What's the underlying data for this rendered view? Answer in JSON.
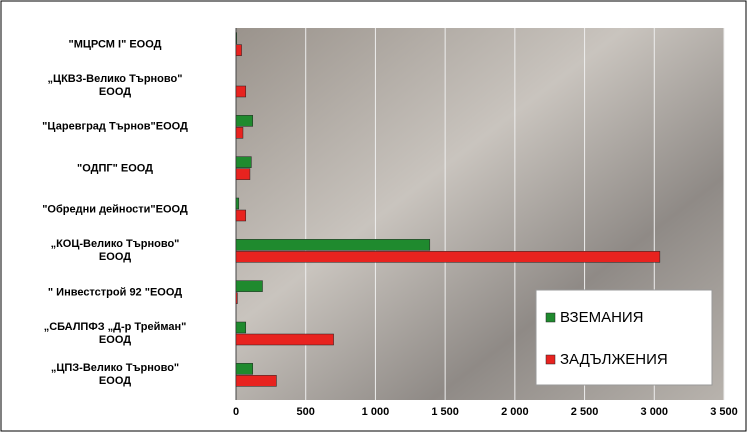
{
  "chart_data": {
    "type": "bar",
    "orientation": "horizontal",
    "categories": [
      "\"МЦРСМ I\" ЕООД",
      "„ЦКВЗ-Велико Търново\"\nЕООД",
      "\"Царевград Търнов\"ЕООД",
      "\"ОДПГ\" ЕООД",
      "\"Обредни дейности\"ЕООД",
      "„КОЦ-Велико Търново\"\nЕООД",
      "\" Инвестстрой 92 \"ЕООД",
      "„СБАЛПФЗ „Д-р Трейман\"\nЕООД",
      "„ЦПЗ-Велико Търново\"\nЕООД"
    ],
    "series": [
      {
        "name": "ВЗЕМАНИЯ",
        "color": "#1f8a2e",
        "values": [
          5,
          0,
          120,
          110,
          20,
          1390,
          190,
          70,
          120
        ]
      },
      {
        "name": "ЗАДЪЛЖЕНИЯ",
        "color": "#e8231f",
        "values": [
          40,
          70,
          50,
          100,
          70,
          3040,
          10,
          700,
          290
        ]
      }
    ],
    "xlim": [
      0,
      3500
    ],
    "xticks": [
      0,
      500,
      {
        "value": 1000,
        "label": "1 000"
      },
      {
        "value": 1500,
        "label": "1 500"
      },
      {
        "value": 2000,
        "label": "2 000"
      },
      {
        "value": 2500,
        "label": "2 500"
      },
      {
        "value": 3000,
        "label": "3 000"
      },
      {
        "value": 3500,
        "label": "3 500"
      }
    ],
    "grid": true,
    "legend": "lower right"
  }
}
